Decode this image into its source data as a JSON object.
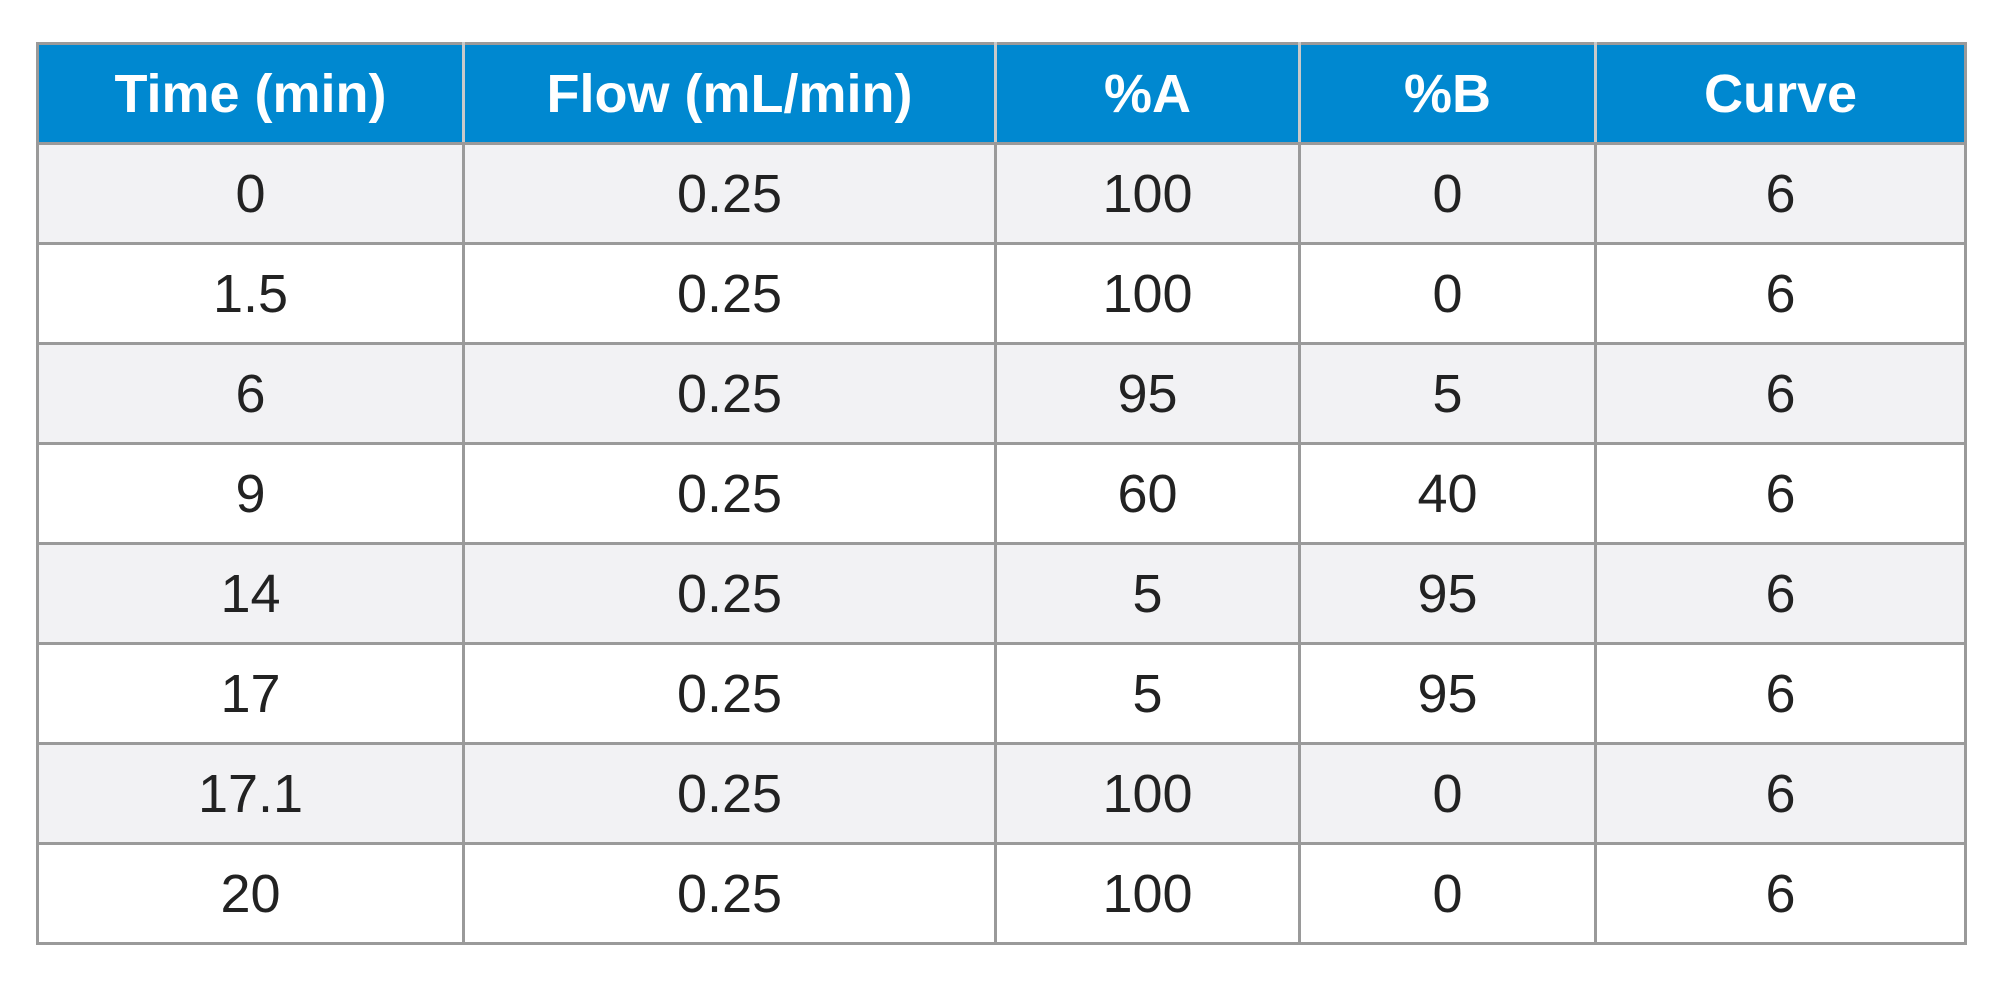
{
  "table": {
    "headers": [
      "Time (min)",
      "Flow (mL/min)",
      "%A",
      "%B",
      "Curve"
    ],
    "rows": [
      [
        "0",
        "0.25",
        "100",
        "0",
        "6"
      ],
      [
        "1.5",
        "0.25",
        "100",
        "0",
        "6"
      ],
      [
        "6",
        "0.25",
        "95",
        "5",
        "6"
      ],
      [
        "9",
        "0.25",
        "60",
        "40",
        "6"
      ],
      [
        "14",
        "0.25",
        "5",
        "95",
        "6"
      ],
      [
        "17",
        "0.25",
        "5",
        "95",
        "6"
      ],
      [
        "17.1",
        "0.25",
        "100",
        "0",
        "6"
      ],
      [
        "20",
        "0.25",
        "100",
        "0",
        "6"
      ]
    ]
  },
  "colors": {
    "header_background": "#0088d0",
    "header_text": "#ffffff",
    "row_stripe": "#f2f2f4",
    "row_plain": "#ffffff",
    "grid_lines": "#9a9a9a",
    "body_text": "#222222"
  }
}
